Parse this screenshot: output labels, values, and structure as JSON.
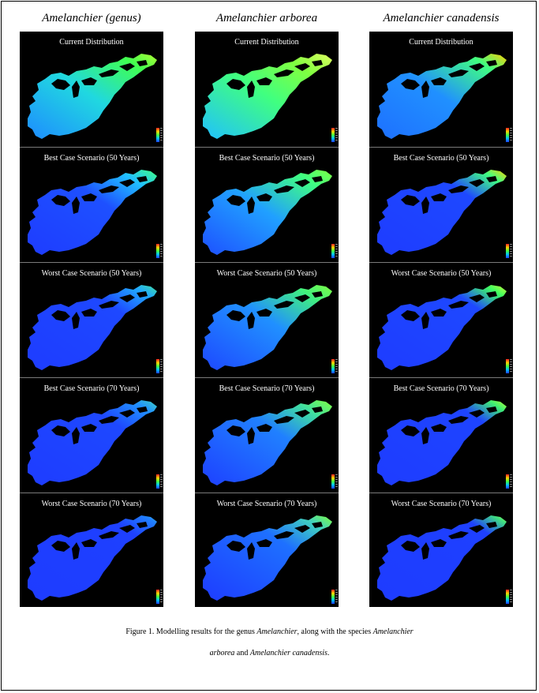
{
  "columns": [
    {
      "title": "Amelanchier (genus)",
      "panels": [
        {
          "title": "Current Distribution",
          "style": "genus-current"
        },
        {
          "title": "Best Case Scenario (50 Years)",
          "style": "genus-b50"
        },
        {
          "title": "Worst Case Scenario (50 Years)",
          "style": "genus-w50"
        },
        {
          "title": "Best Case Scenario (70 Years)",
          "style": "genus-b70"
        },
        {
          "title": "Worst Case Scenario (70 Years)",
          "style": "genus-w70"
        }
      ]
    },
    {
      "title": "Amelanchier arborea",
      "panels": [
        {
          "title": "Current Distribution",
          "style": "arb-current"
        },
        {
          "title": "Best Case Scenario (50 Years)",
          "style": "arb-b50"
        },
        {
          "title": "Worst Case Scenario (50 Years)",
          "style": "arb-w50"
        },
        {
          "title": "Best Case Scenario (70 Years)",
          "style": "arb-b70"
        },
        {
          "title": "Worst Case Scenario (70 Years)",
          "style": "arb-w70"
        }
      ]
    },
    {
      "title": "Amelanchier canadensis",
      "panels": [
        {
          "title": "Current Distribution",
          "style": "can-current"
        },
        {
          "title": "Best Case Scenario (50 Years)",
          "style": "can-b50"
        },
        {
          "title": "Worst Case Scenario (50 Years)",
          "style": "can-w50"
        },
        {
          "title": "Best Case Scenario (70 Years)",
          "style": "can-b70"
        },
        {
          "title": "Worst Case Scenario (70 Years)",
          "style": "can-w70"
        }
      ]
    }
  ],
  "caption": {
    "line1_prefix": "Figure 1. Modelling results for the genus ",
    "line1_genus": "Amelanchier",
    "line1_middle": ", along with the species ",
    "line1_species": "Amelanchier",
    "line2_species": "arborea",
    "line2_middle": " and ",
    "line2_species2": "Amelanchier canadensis",
    "line2_end": "."
  },
  "colors": {
    "low": "#1e3cff",
    "mid_low": "#1e8cff",
    "mid": "#20d8e0",
    "high": "#40ff50",
    "very_high": "#d0ff30",
    "peak": "#ffd000"
  }
}
